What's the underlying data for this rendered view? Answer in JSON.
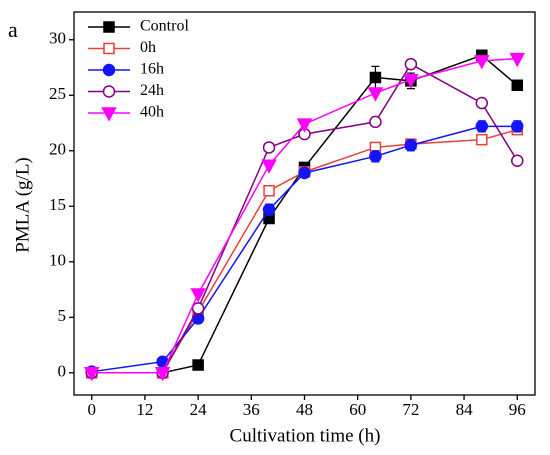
{
  "chart_data": {
    "type": "line",
    "annotation": "a",
    "x_label": "Cultivation time (h)",
    "y_label": "PMLA (g/L)",
    "x": [
      0,
      16,
      24,
      40,
      48,
      64,
      72,
      88,
      96
    ],
    "xlim": [
      -4,
      100
    ],
    "xticks": [
      0,
      12,
      24,
      36,
      48,
      60,
      72,
      84,
      96
    ],
    "ylim": [
      -2,
      32.5
    ],
    "yticks": [
      0,
      5,
      10,
      15,
      20,
      25,
      30
    ],
    "legend": "upper left",
    "series": [
      {
        "name": "Control",
        "color": "#000000",
        "marker": "square",
        "filled": true,
        "values": [
          0,
          0,
          0.7,
          13.9,
          18.5,
          26.6,
          26.3,
          28.6,
          25.9
        ],
        "errors": [
          0.3,
          0.2,
          0.2,
          0.4,
          0.4,
          1.0,
          0.7,
          0.4,
          0.4
        ]
      },
      {
        "name": "0h",
        "color": "#e8413c",
        "marker": "square",
        "filled": false,
        "values": [
          0,
          0,
          5.5,
          16.4,
          18.1,
          20.3,
          20.6,
          21.0,
          21.9
        ]
      },
      {
        "name": "16h",
        "color": "#1414ff",
        "marker": "circle",
        "filled": true,
        "values": [
          0.1,
          1.0,
          4.9,
          14.7,
          18.0,
          19.5,
          20.5,
          22.2,
          22.2
        ],
        "errors": [
          0.3,
          0.3,
          0.4,
          0.5,
          0.4,
          0.5,
          0.5,
          0.5,
          0.5
        ]
      },
      {
        "name": "24h",
        "color": "#800080",
        "marker": "circle",
        "filled": false,
        "values": [
          0,
          0,
          5.8,
          20.3,
          21.5,
          22.6,
          27.8,
          24.3,
          19.1
        ]
      },
      {
        "name": "40h",
        "color": "#ff00ff",
        "marker": "triangle-down",
        "filled": true,
        "values": [
          0,
          0,
          7.1,
          18.7,
          22.4,
          25.2,
          26.4,
          28.1,
          28.3
        ]
      }
    ]
  }
}
